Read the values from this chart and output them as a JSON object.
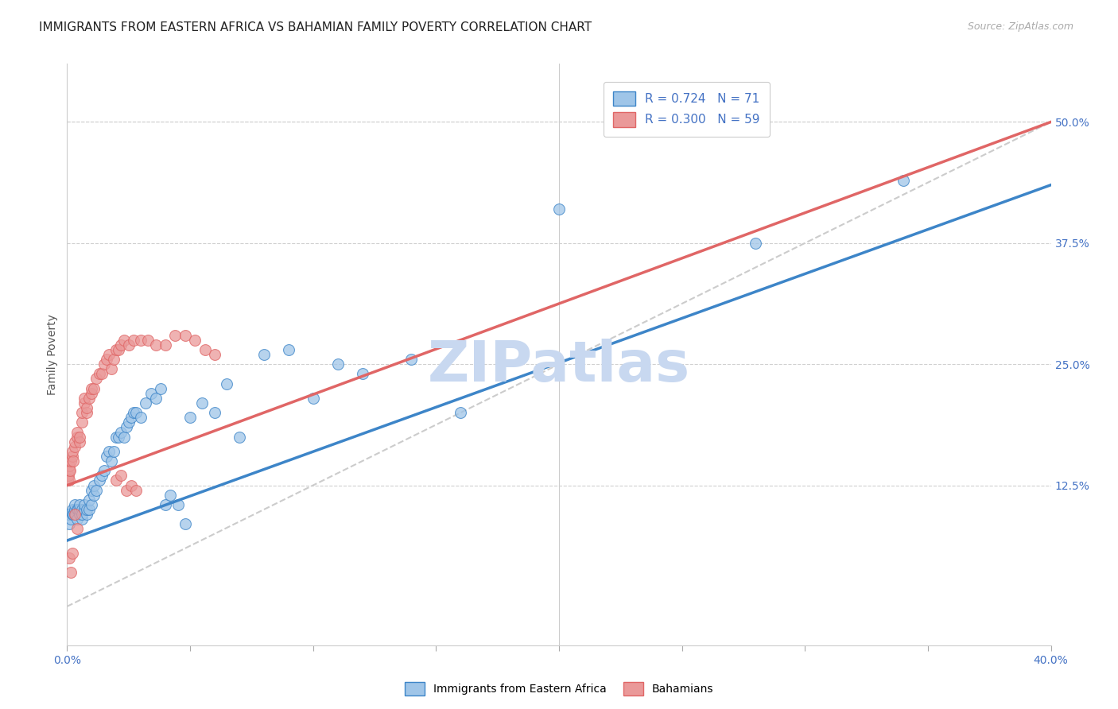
{
  "title": "IMMIGRANTS FROM EASTERN AFRICA VS BAHAMIAN FAMILY POVERTY CORRELATION CHART",
  "source": "Source: ZipAtlas.com",
  "ylabel": "Family Poverty",
  "right_yticks": [
    "50.0%",
    "37.5%",
    "25.0%",
    "12.5%"
  ],
  "right_ytick_vals": [
    0.5,
    0.375,
    0.25,
    0.125
  ],
  "xlim": [
    0.0,
    0.4
  ],
  "ylim": [
    -0.04,
    0.56
  ],
  "blue_legend_r": "0.724",
  "blue_legend_n": "71",
  "pink_legend_r": "0.300",
  "pink_legend_n": "59",
  "blue_color": "#9fc5e8",
  "pink_color": "#ea9999",
  "blue_line_color": "#3d85c8",
  "pink_line_color": "#e06666",
  "dashed_line_color": "#cccccc",
  "watermark": "ZIPatlas",
  "blue_scatter_x": [
    0.0005,
    0.001,
    0.001,
    0.0015,
    0.002,
    0.002,
    0.0025,
    0.003,
    0.003,
    0.003,
    0.0035,
    0.004,
    0.004,
    0.0045,
    0.005,
    0.005,
    0.005,
    0.006,
    0.006,
    0.006,
    0.007,
    0.007,
    0.008,
    0.008,
    0.009,
    0.009,
    0.01,
    0.01,
    0.011,
    0.011,
    0.012,
    0.013,
    0.014,
    0.015,
    0.016,
    0.017,
    0.018,
    0.019,
    0.02,
    0.021,
    0.022,
    0.023,
    0.024,
    0.025,
    0.026,
    0.027,
    0.028,
    0.03,
    0.032,
    0.034,
    0.036,
    0.038,
    0.04,
    0.042,
    0.045,
    0.048,
    0.05,
    0.055,
    0.06,
    0.065,
    0.07,
    0.08,
    0.09,
    0.1,
    0.11,
    0.12,
    0.14,
    0.16,
    0.2,
    0.28,
    0.34
  ],
  "blue_scatter_y": [
    0.095,
    0.085,
    0.095,
    0.09,
    0.095,
    0.1,
    0.095,
    0.095,
    0.1,
    0.105,
    0.095,
    0.1,
    0.09,
    0.1,
    0.095,
    0.1,
    0.105,
    0.1,
    0.09,
    0.095,
    0.1,
    0.105,
    0.095,
    0.1,
    0.1,
    0.11,
    0.105,
    0.12,
    0.115,
    0.125,
    0.12,
    0.13,
    0.135,
    0.14,
    0.155,
    0.16,
    0.15,
    0.16,
    0.175,
    0.175,
    0.18,
    0.175,
    0.185,
    0.19,
    0.195,
    0.2,
    0.2,
    0.195,
    0.21,
    0.22,
    0.215,
    0.225,
    0.105,
    0.115,
    0.105,
    0.085,
    0.195,
    0.21,
    0.2,
    0.23,
    0.175,
    0.26,
    0.265,
    0.215,
    0.25,
    0.24,
    0.255,
    0.2,
    0.41,
    0.375,
    0.44
  ],
  "pink_scatter_x": [
    0.0003,
    0.0005,
    0.0008,
    0.001,
    0.001,
    0.0012,
    0.0015,
    0.002,
    0.002,
    0.0025,
    0.003,
    0.003,
    0.004,
    0.004,
    0.005,
    0.005,
    0.006,
    0.006,
    0.007,
    0.007,
    0.008,
    0.008,
    0.009,
    0.01,
    0.01,
    0.011,
    0.012,
    0.013,
    0.014,
    0.015,
    0.016,
    0.017,
    0.018,
    0.019,
    0.02,
    0.021,
    0.022,
    0.023,
    0.025,
    0.027,
    0.03,
    0.033,
    0.036,
    0.04,
    0.044,
    0.048,
    0.052,
    0.056,
    0.06,
    0.001,
    0.0015,
    0.002,
    0.003,
    0.004,
    0.02,
    0.022,
    0.024,
    0.026,
    0.028
  ],
  "pink_scatter_y": [
    0.13,
    0.135,
    0.14,
    0.13,
    0.145,
    0.14,
    0.15,
    0.155,
    0.16,
    0.15,
    0.165,
    0.17,
    0.175,
    0.18,
    0.17,
    0.175,
    0.19,
    0.2,
    0.21,
    0.215,
    0.2,
    0.205,
    0.215,
    0.22,
    0.225,
    0.225,
    0.235,
    0.24,
    0.24,
    0.25,
    0.255,
    0.26,
    0.245,
    0.255,
    0.265,
    0.265,
    0.27,
    0.275,
    0.27,
    0.275,
    0.275,
    0.275,
    0.27,
    0.27,
    0.28,
    0.28,
    0.275,
    0.265,
    0.26,
    0.05,
    0.035,
    0.055,
    0.095,
    0.08,
    0.13,
    0.135,
    0.12,
    0.125,
    0.12
  ],
  "blue_line_x": [
    0.0,
    0.4
  ],
  "blue_line_y": [
    0.068,
    0.435
  ],
  "pink_line_x": [
    0.0,
    0.4
  ],
  "pink_line_y": [
    0.125,
    0.5
  ],
  "diag_line_x": [
    0.0,
    0.4
  ],
  "diag_line_y": [
    0.0,
    0.5
  ],
  "background_color": "#ffffff",
  "grid_color": "#d0d0d0",
  "title_fontsize": 11,
  "axis_label_fontsize": 10,
  "tick_fontsize": 10,
  "watermark_fontsize": 52,
  "watermark_color": "#c8d8f0",
  "legend_fontsize": 11,
  "xtick_positions": [
    0.0,
    0.05,
    0.1,
    0.15,
    0.2,
    0.25,
    0.3,
    0.35,
    0.4
  ]
}
